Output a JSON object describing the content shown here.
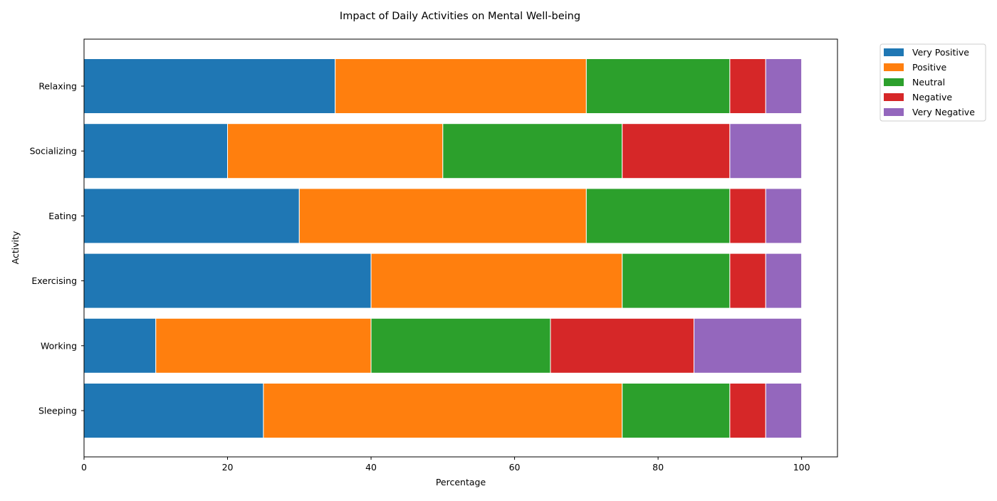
{
  "chart_data": {
    "type": "bar",
    "orientation": "horizontal",
    "stacked": true,
    "title": "Impact of Daily Activities on Mental Well-being",
    "xlabel": "Percentage",
    "ylabel": "Activity",
    "xlim": [
      0,
      105
    ],
    "xticks": [
      0,
      20,
      40,
      60,
      80,
      100
    ],
    "grid": false,
    "legend_position": "outside top-right",
    "categories": [
      "Sleeping",
      "Working",
      "Exercising",
      "Eating",
      "Socializing",
      "Relaxing"
    ],
    "series": [
      {
        "name": "Very Positive",
        "color": "#1f77b4",
        "values": [
          25,
          10,
          40,
          30,
          20,
          35
        ]
      },
      {
        "name": "Positive",
        "color": "#ff7f0e",
        "values": [
          50,
          30,
          35,
          40,
          30,
          35
        ]
      },
      {
        "name": "Neutral",
        "color": "#2ca02c",
        "values": [
          15,
          25,
          15,
          20,
          25,
          20
        ]
      },
      {
        "name": "Negative",
        "color": "#d62728",
        "values": [
          5,
          20,
          5,
          5,
          15,
          5
        ]
      },
      {
        "name": "Very Negative",
        "color": "#9467bd",
        "values": [
          5,
          15,
          5,
          5,
          10,
          5
        ]
      }
    ]
  }
}
